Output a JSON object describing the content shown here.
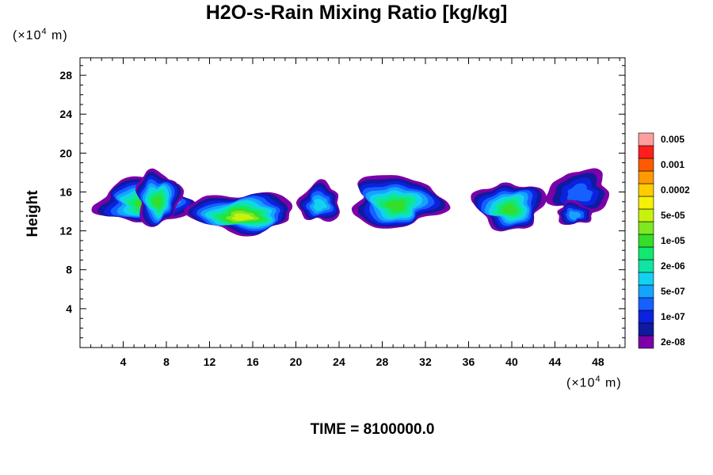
{
  "chart_data": {
    "type": "heatmap",
    "title": "H2O-s-Rain Mixing Ratio [kg/kg]",
    "ylabel": "Height",
    "xlabel": "",
    "x_unit": {
      "prefix": "(×10",
      "exponent": "4",
      "suffix": " m)"
    },
    "y_unit": {
      "prefix": "(×10",
      "exponent": "4",
      "suffix": " m)"
    },
    "xlim": [
      0,
      50.5
    ],
    "ylim": [
      0,
      29.8
    ],
    "xticks": [
      4,
      8,
      12,
      16,
      20,
      24,
      28,
      32,
      36,
      40,
      44,
      48
    ],
    "yticks": [
      4,
      8,
      12,
      16,
      20,
      24,
      28
    ],
    "footer": "TIME = 8100000.0",
    "colorbar": {
      "levels": [
        {
          "color": "#7b00a8",
          "label": "2e-08"
        },
        {
          "color": "#101a9e",
          "label": ""
        },
        {
          "color": "#0b22e0",
          "label": "1e-07"
        },
        {
          "color": "#1560ff",
          "label": ""
        },
        {
          "color": "#14a4ff",
          "label": "5e-07"
        },
        {
          "color": "#12d2f0",
          "label": ""
        },
        {
          "color": "#10e4a4",
          "label": "2e-06"
        },
        {
          "color": "#10e870",
          "label": ""
        },
        {
          "color": "#34de2a",
          "label": "1e-05"
        },
        {
          "color": "#7ee820",
          "label": ""
        },
        {
          "color": "#c6f20e",
          "label": "5e-05"
        },
        {
          "color": "#f4f006",
          "label": ""
        },
        {
          "color": "#ffcc00",
          "label": "0.0002"
        },
        {
          "color": "#ff9a00",
          "label": ""
        },
        {
          "color": "#ff5a00",
          "label": "0.001"
        },
        {
          "color": "#ff1e1e",
          "label": ""
        },
        {
          "color": "#ff9e9e",
          "label": "0.005"
        }
      ]
    },
    "cells": [
      {
        "cx": 6.0,
        "cy": 15.1,
        "rx": 4.3,
        "ry": 2.3,
        "levels": 9
      },
      {
        "cx": 7.2,
        "cy": 15.4,
        "rx": 2.0,
        "ry": 2.8,
        "levels": 9
      },
      {
        "cx": 15.0,
        "cy": 13.9,
        "rx": 4.9,
        "ry": 2.0,
        "levels": 11
      },
      {
        "cx": 22.2,
        "cy": 14.9,
        "rx": 1.9,
        "ry": 2.0,
        "levels": 6
      },
      {
        "cx": 29.3,
        "cy": 15.0,
        "rx": 4.1,
        "ry": 2.7,
        "levels": 9
      },
      {
        "cx": 39.8,
        "cy": 14.6,
        "rx": 3.2,
        "ry": 2.4,
        "levels": 9
      },
      {
        "cx": 46.3,
        "cy": 16.0,
        "rx": 2.8,
        "ry": 2.2,
        "levels": 4
      },
      {
        "cx": 45.8,
        "cy": 13.8,
        "rx": 1.6,
        "ry": 1.2,
        "levels": 5
      }
    ]
  }
}
